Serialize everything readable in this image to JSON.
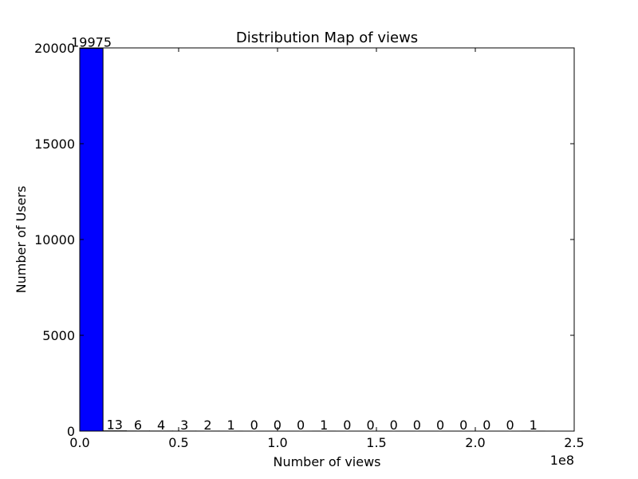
{
  "chart_data": {
    "type": "bar",
    "title": "Distribution Map of views",
    "xlabel": "Number of views",
    "ylabel": "Number of Users",
    "x_offset_label": "1e8",
    "xlim": [
      0,
      250000000
    ],
    "ylim": [
      0,
      20000
    ],
    "x_ticks": [
      0,
      50000000,
      100000000,
      150000000,
      200000000,
      250000000
    ],
    "x_tick_labels": [
      "0.0",
      "0.5",
      "1.0",
      "1.5",
      "2.0",
      "2.5"
    ],
    "y_ticks": [
      0,
      5000,
      10000,
      15000,
      20000
    ],
    "y_tick_labels": [
      "0",
      "5000",
      "10000",
      "15000",
      "20000"
    ],
    "bin_start": 0,
    "bin_width": 11760000,
    "values": [
      19975,
      13,
      6,
      4,
      3,
      2,
      1,
      0,
      0,
      0,
      1,
      0,
      0,
      0,
      0,
      0,
      0,
      0,
      0,
      1
    ],
    "value_labels": [
      "19975",
      "13",
      "6",
      "4",
      "3",
      "2",
      "1",
      "0",
      "0",
      "0",
      "1",
      "0",
      "0",
      "0",
      "0",
      "0",
      "0",
      "0",
      "0",
      "1"
    ],
    "bar_color": "#0000ff",
    "edge_color": "#000000",
    "grid": false
  }
}
